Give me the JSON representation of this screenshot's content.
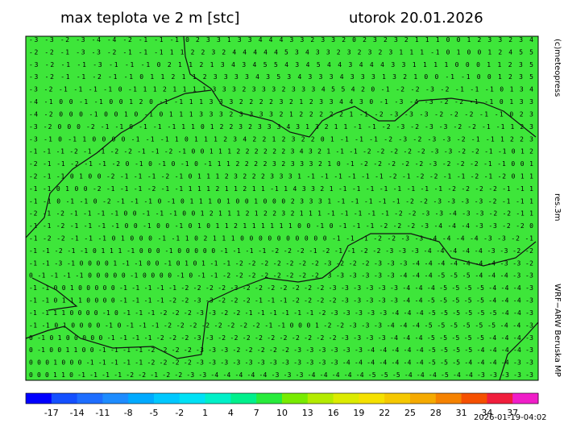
{
  "header": {
    "title": "max teplota ve 2 m [stc]",
    "date": "utorok 20.01.2026"
  },
  "side_labels": {
    "copyright": "(c)meteopress",
    "resolution": "res.3m",
    "model": "WRF−ARW Beruska MP"
  },
  "timestamp": "2026-01-19-04:02",
  "map": {
    "background": "#3ee63a",
    "rows": [
      "-3 -3 -2 -3 -4 -4 -2 -1 -1 -1 0 2 3 3 1 3 3 4 4 4 3 3 2 3 3 2 0 2 3 2 3 2 1 1 1 0 0 1 2 3 3 2 3 4",
      "-2 -2 -1 -3 -3 -2 -1 -1 -1 1 1 2 2 3 2 4 4 4 4 4 5 3 4 3 3 2 3 2 3 2 3 1 1 1 -1 0 1 0 0 1 2 4 5 5",
      "-3 -2 -1 -1 -3 -1 -1 -1 0 2 1 1 2 1 3 4 3 4 5 5 4 3 4 5 4 4 3 4 4 4 3 3 1 1 1 1 0 0 0 1 1 2 3 5",
      "-3 -2 -1 -1 -2 -1 -1 0 1 1 2 1 1 2 3 3 3 3 4 3 5 3 4 3 3 3 4 3 3 3 1 3 2 1 0 0 -1 -1 0 0 1 2 3 5",
      "-3 -2 -1 -1 -1 -1 0 -1 1 1 2 1 1 1 1 3 3 3 2 3 3 3 2 3 3 3 4 5 5 4 2 0 -1 -2 -2 -3 -2 -1 -1 -1 0 1 3 4",
      "-4 -1 0 0 -1 -1 0 0 1 2 0 -1 -1 1 1 3 3 3 2 2 2 2 3 2 1 2 3 3 4 4 3 0 -1 -3 -4 -3 -2 -2 -1 -1 0 1 3 3",
      "-4 -2 0 0 0 -1 0 0 1 0 -1 0 1 1 1 3 3 3 2 3 3 3 3 2 1 2 2 2 2 2 1 -1 -2 -3 -3 -3 -2 -2 -2 -1 -1 0 2 3",
      "-3 -2 0 0 0 -2 -1 -1 0 -1 -1 -1 1 1 0 1 2 2 3 2 3 3 3 4 3 1 3 2 1 1 -1 -1 -2 -3 -2 -3 -3 -2 -2 -1 -1 1 2 3",
      "-3 -1 0 -1 1 0 0 0 0 -1 -1 -1 1 0 1 1 1 2 3 4 2 2 1 2 3 2 2 0 1 -1 -1 -1 -2 -3 -2 -3 -3 -2 -1 -1 1 2 2 3",
      "-1 -1 -1 -2 -1 -1 -2 -2 -1 -1 -2 -1 0 0 1 1 1 2 2 2 2 2 2 3 4 3 2 1 -1 -1 -2 -2 -2 -2 -2 -3 -3 -2 -2 -1 -1 0 1 2",
      "-2 -1 -1 -2 -1 -1 -2 0 -1 0 -1 0 -1 0 -1 1 1 2 2 2 2 3 2 3 3 3 2 1 0 -1 -2 -2 -2 -2 -2 -3 -2 -2 -2 -1 -1 0 0 1",
      "-2 -1 -1 0 1 0 0 -2 -1 -1 -1 -2 -1 0 1 1 1 2 3 2 2 2 3 3 3 1 -1 -1 -1 -1 -1 -1 -2 -1 -2 -2 -1 -1 -2 -1 -2 0 1 1",
      "-1 -1 0 1 0 0 -2 -1 -1 -1 -2 -1 -1 1 1 1 2 1 1 2 1 1 -1 1 4 3 3 2 1 -1 -1 -1 -1 -1 -1 -1 -1 -2 -2 -2 -2 -1 -1 1",
      "-1 -1 0 -1 -1 0 -2 -1 -1 -1 0 -1 0 1 1 1 0 1 0 0 1 0 0 0 2 3 3 3 1 -1 -1 -1 -1 -1 -2 -2 -3 -3 -3 -3 -2 -1 -1 1",
      "-2 -1 -2 -1 -1 -1 -1 0 0 -1 -1 -1 0 0 1 2 1 1 1 2 1 2 2 3 2 1 1 1 -1 -1 -1 -1 -1 -2 -2 -3 -3 -4 -3 -3 -2 -2 -1 1",
      "-1 -1 -2 -1 -1 -1 -1 0 0 -1 0 0 -1 0 1 0 1 1 2 1 1 1 1 1 1 0 0 -1 0 -1 -1 -1 -2 -2 -2 -3 -4 -4 -4 -3 -3 -2 -2 0",
      "-1 -2 -2 -1 -1 -1 0 1 0 0 0 -1 -1 1 0 2 1 1 1 0 0 0 0 0 0 0 0 0 0 -1 -1 -1 -2 -2 -3 -3 -4 -4 -4 -4 -3 -3 -2 -1",
      "-1 -1 -2 -1 -1 0 1 1 1 -1 0 0 0 -1 0 0 0 0 0 -1 -1 -1 -1 -2 -2 -2 -1 -2 -1 -1 -2 -2 -3 -3 -3 -4 -4 -4 -4 -4 -3 -3 -2 -2",
      "-1 -1 -3 -1 0 0 0 0 1 -1 -1 0 0 -1 0 1 0 1 -1 -1 -2 -2 -2 -2 -2 -2 -2 -3 -2 -2 -2 -3 -3 -3 -4 -4 -4 -4 -4 -4 -4 -3 -3 -2",
      "0 -1 -1 -1 -1 0 0 0 0 0 -1 0 0 0 0 -1 0 -1 -1 -2 -2 -2 -2 -2 -2 -2 -2 -3 -3 -3 -3 -3 -3 -4 -4 -4 -5 -5 -5 -4 -4 -4 -3 -3",
      "-1 -1 0 0 1 0 0 0 0 0 -1 -1 -1 -1 -1 -2 -2 -2 -2 -3 -2 -2 -2 -2 -2 -2 -2 -3 -3 -3 -3 -3 -3 -4 -4 -4 -5 -5 -5 -5 -4 -4 -4 -3",
      "-1 -1 0 1 1 1 0 0 0 0 -1 -1 -1 -1 -2 -2 -3 -3 -2 -2 -2 -1 -1 -1 -2 -2 -2 -2 -3 -3 -3 -3 -3 -4 -4 -5 -5 -5 -5 -5 -4 -4 -4 -3",
      "-1 -1 1 1 0 0 0 0 -1 0 -1 -1 -1 -2 -2 -2 -3 -3 -2 -2 -1 -1 -1 -1 -1 -1 -2 -3 -3 -3 -3 -3 -4 -4 -4 -5 -5 -5 -5 -5 -5 -4 -4 -3",
      "-1 -1 0 1 0 0 0 0 -1 0 -1 -1 -1 -2 -2 -2 -2 -2 -2 -2 -2 -1 -1 0 0 0 1 -2 -2 -3 -3 -3 -4 -4 -4 -5 -5 -5 -5 -5 -5 -4 -4 -3",
      "0 -1 0 1 0 0 0 0 0 -1 -1 -1 -1 -2 -2 -2 -3 -3 -2 -2 -2 -2 -2 -2 -2 -2 -2 -2 -3 -3 -3 -3 -4 -4 -4 -5 -5 -5 -5 -5 -4 -4 -4 -3",
      "0 -1 0 0 1 1 0 0 -1 -1 -1 -1 -2 -2 -2 -2 -3 -3 -3 -2 -2 -2 -2 -2 -3 -3 -3 -3 -3 -3 -4 -4 -4 -4 -4 -5 -5 -5 -5 -4 -4 -4 -4 -3",
      "0 0 0 1 0 0 0 -1 -1 -1 -1 -1 -2 -2 -2 -2 -3 -3 -3 -3 -3 -3 -3 -3 -3 -3 -3 -3 -4 -4 -4 -4 -4 -4 -4 -5 -5 -5 -4 -4 -4 -4 -3 -3",
      "0 0 0 1 1 0 -1 -1 -1 -1 -2 -2 -1 -2 -2 -3 -3 -4 -4 -4 -4 -4 -3 -3 -3 -4 -4 -4 -4 -4 -5 -5 -5 -4 -4 -4 -5 -4 -4 -3 -3 -3 -3 -3"
    ]
  },
  "colorbar": {
    "colors": [
      "#0000ff",
      "#1450ff",
      "#1e6eff",
      "#1e8cff",
      "#00aaff",
      "#00c8ff",
      "#00e1f5",
      "#00f0c8",
      "#00f08c",
      "#28eb3c",
      "#78eb00",
      "#b4eb00",
      "#dceb00",
      "#f5e100",
      "#f5c800",
      "#f5aa00",
      "#f58200",
      "#f55000",
      "#f01e3c",
      "#f01ec8"
    ],
    "ticks": [
      -17,
      -14,
      -11,
      -8,
      -5,
      -2,
      1,
      4,
      7,
      10,
      13,
      16,
      19,
      22,
      25,
      28,
      31,
      34,
      37
    ]
  }
}
